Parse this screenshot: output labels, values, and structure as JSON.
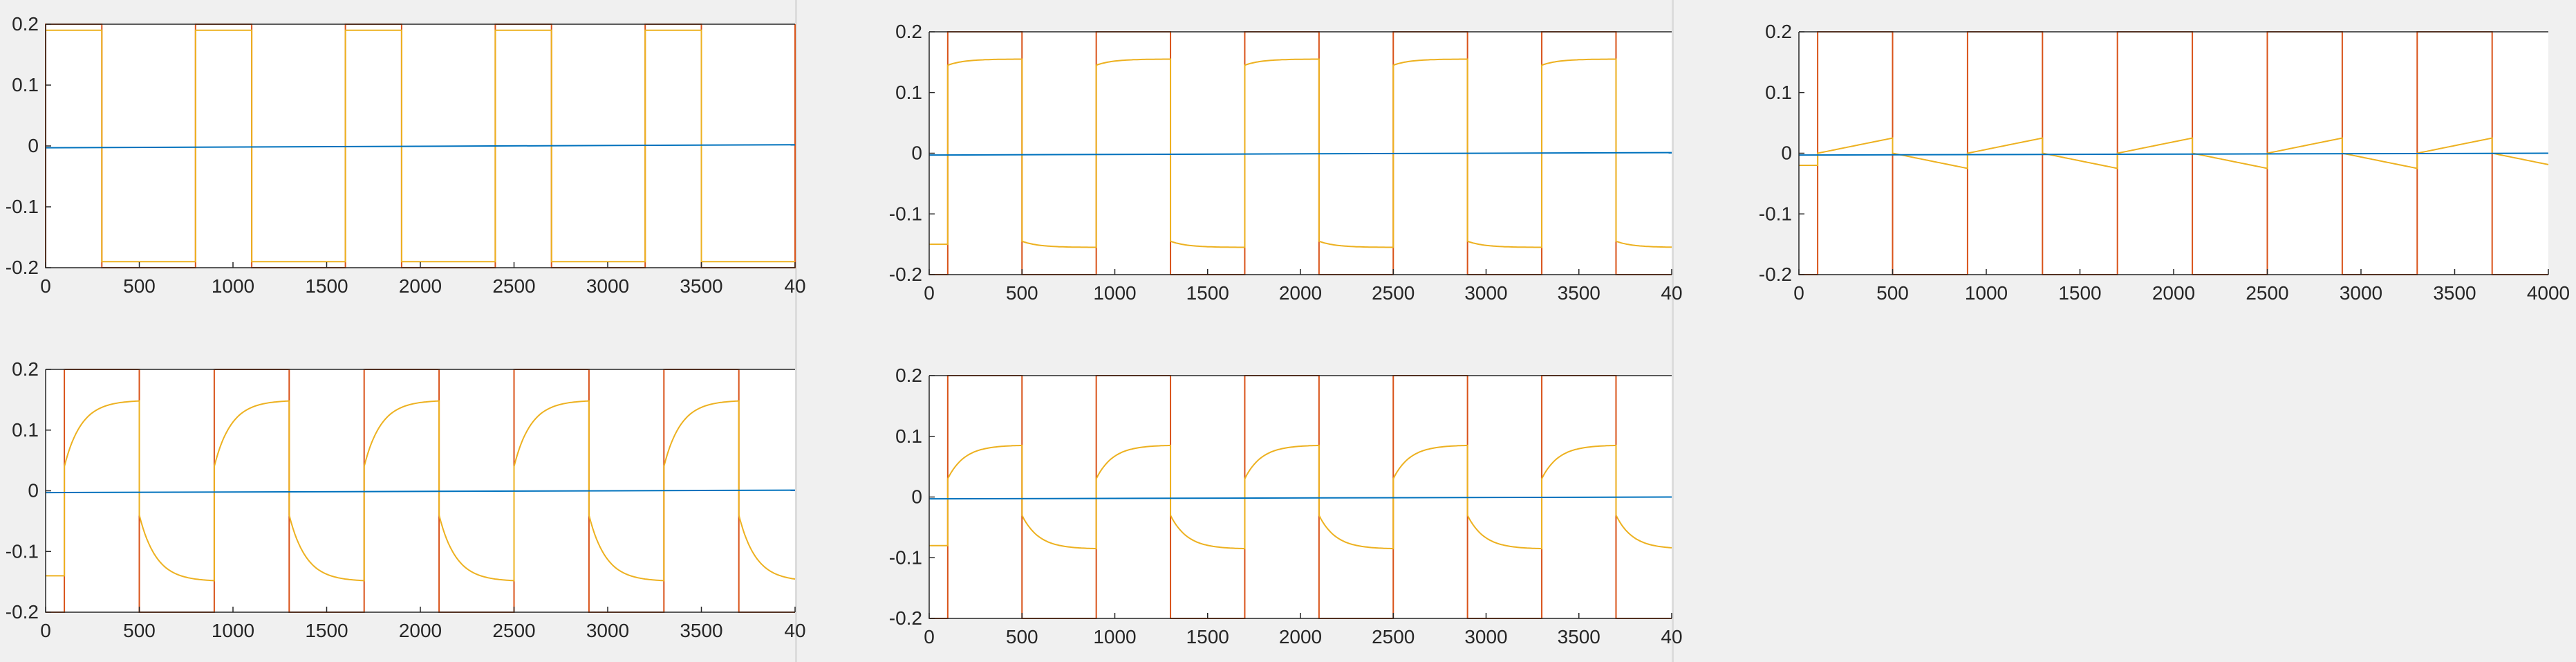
{
  "colors": {
    "figure_bg": "#f0f0f0",
    "axes_bg": "#ffffff",
    "axis_color": "#262626",
    "blue": "#0072bd",
    "red": "#d95319",
    "yellow": "#edb120"
  },
  "chart_data": [
    {
      "id": "panel-1",
      "type": "line",
      "x_ticks": [
        "0",
        "500",
        "1000",
        "1500",
        "2000",
        "2500",
        "3000",
        "3500",
        "40"
      ],
      "y_ticks": [
        "-0.2",
        "-0.1",
        "0",
        "0.1",
        "0.2"
      ],
      "xlim": [
        0,
        4000
      ],
      "ylim": [
        -0.2,
        0.2
      ],
      "period": 800,
      "first_high_start": 0,
      "high_duration": 300,
      "yellow_mode": "square",
      "yellow_level": 0.19,
      "yellow_lead": 0,
      "series": [
        {
          "color": "#0072bd",
          "x": [
            0,
            4000
          ],
          "y": [
            -0.003,
            0.002
          ]
        },
        {
          "color": "#d95319",
          "amplitude": 0.2
        },
        {
          "color": "#edb120"
        }
      ],
      "grid": false
    },
    {
      "id": "panel-2",
      "type": "line",
      "x_ticks": [
        "0",
        "500",
        "1000",
        "1500",
        "2000",
        "2500",
        "3000",
        "3500",
        "40"
      ],
      "y_ticks": [
        "-0.2",
        "-0.1",
        "0",
        "0.1",
        "0.2"
      ],
      "xlim": [
        0,
        4000
      ],
      "ylim": [
        -0.2,
        0.2
      ],
      "period": 800,
      "first_high_start": 100,
      "high_duration": 400,
      "yellow_mode": "saturating",
      "yellow_start": 0.145,
      "yellow_end": 0.155,
      "yellow_initial": -0.15,
      "series": [
        {
          "color": "#0072bd",
          "x": [
            0,
            4000
          ],
          "y": [
            -0.003,
            0.001
          ]
        },
        {
          "color": "#d95319",
          "amplitude": 0.2
        },
        {
          "color": "#edb120"
        }
      ],
      "grid": false
    },
    {
      "id": "panel-3",
      "type": "line",
      "x_ticks": [
        "0",
        "500",
        "1000",
        "1500",
        "2000",
        "2500",
        "3000",
        "3500",
        "4000"
      ],
      "y_ticks": [
        "-0.2",
        "-0.1",
        "0",
        "0.1",
        "0.2"
      ],
      "xlim": [
        0,
        4000
      ],
      "ylim": [
        -0.2,
        0.2
      ],
      "period": 800,
      "first_high_start": 100,
      "high_duration": 400,
      "yellow_mode": "ramp",
      "yellow_start": 0.0,
      "yellow_end": 0.025,
      "yellow_initial": -0.02,
      "series": [
        {
          "color": "#0072bd",
          "x": [
            0,
            4000
          ],
          "y": [
            -0.003,
            0.0
          ]
        },
        {
          "color": "#d95319",
          "amplitude": 0.2
        },
        {
          "color": "#edb120"
        }
      ],
      "grid": false
    },
    {
      "id": "panel-4",
      "type": "line",
      "x_ticks": [
        "0",
        "500",
        "1000",
        "1500",
        "2000",
        "2500",
        "3000",
        "3500",
        "40"
      ],
      "y_ticks": [
        "-0.2",
        "-0.1",
        "0",
        "0.1",
        "0.2"
      ],
      "xlim": [
        0,
        4000
      ],
      "ylim": [
        -0.2,
        0.2
      ],
      "period": 800,
      "first_high_start": 100,
      "high_duration": 400,
      "yellow_mode": "saturating",
      "yellow_start": 0.04,
      "yellow_end": 0.148,
      "yellow_initial": -0.14,
      "series": [
        {
          "color": "#0072bd",
          "x": [
            0,
            4000
          ],
          "y": [
            -0.003,
            0.001
          ]
        },
        {
          "color": "#d95319",
          "amplitude": 0.2
        },
        {
          "color": "#edb120"
        }
      ],
      "grid": false
    },
    {
      "id": "panel-5",
      "type": "line",
      "x_ticks": [
        "0",
        "500",
        "1000",
        "1500",
        "2000",
        "2500",
        "3000",
        "3500",
        "40"
      ],
      "y_ticks": [
        "-0.2",
        "-0.1",
        "0",
        "0.1",
        "0.2"
      ],
      "xlim": [
        0,
        4000
      ],
      "ylim": [
        -0.2,
        0.2
      ],
      "period": 800,
      "first_high_start": 100,
      "high_duration": 400,
      "yellow_mode": "saturating",
      "yellow_start": 0.03,
      "yellow_end": 0.085,
      "yellow_initial": -0.08,
      "series": [
        {
          "color": "#0072bd",
          "x": [
            0,
            4000
          ],
          "y": [
            -0.003,
            0.0
          ]
        },
        {
          "color": "#d95319",
          "amplitude": 0.2
        },
        {
          "color": "#edb120"
        }
      ],
      "grid": false
    }
  ]
}
